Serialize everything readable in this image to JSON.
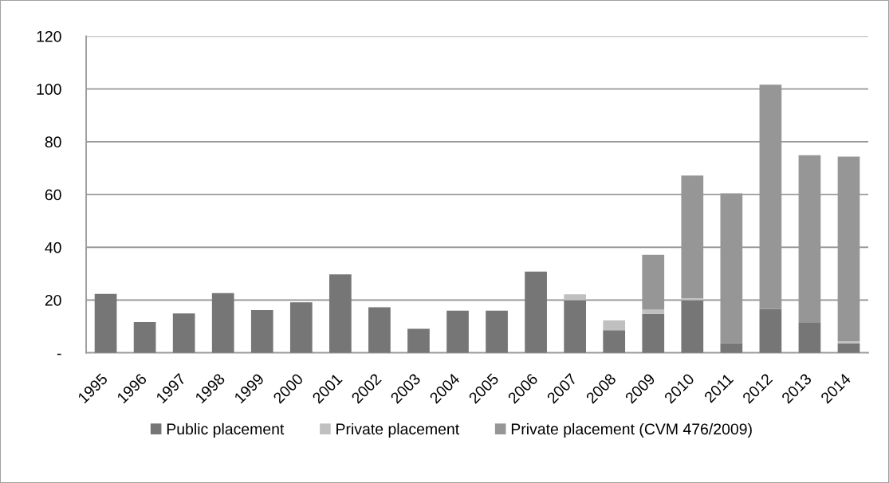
{
  "chart_data": {
    "type": "bar",
    "stacked": true,
    "categories": [
      "1995",
      "1996",
      "1997",
      "1998",
      "1999",
      "2000",
      "2001",
      "2002",
      "2003",
      "2004",
      "2005",
      "2006",
      "2007",
      "2008",
      "2009",
      "2010",
      "2011",
      "2012",
      "2013",
      "2014"
    ],
    "series": [
      {
        "name": "Public placement",
        "color": "#767676",
        "values": [
          22.3,
          11.7,
          14.9,
          22.6,
          16.2,
          19.2,
          29.7,
          17.3,
          9.1,
          16.0,
          16.0,
          30.8,
          19.9,
          8.6,
          14.8,
          19.9,
          3.7,
          16.6,
          11.6,
          3.6
        ]
      },
      {
        "name": "Private placement",
        "color": "#c0c0c0",
        "values": [
          null,
          null,
          null,
          null,
          null,
          null,
          null,
          null,
          null,
          null,
          null,
          null,
          2.3,
          3.7,
          1.6,
          0.8,
          null,
          null,
          null,
          0.8
        ]
      },
      {
        "name": "Private placement (CVM 476/2009)",
        "color": "#969696",
        "values": [
          null,
          null,
          null,
          null,
          null,
          null,
          null,
          null,
          null,
          null,
          null,
          null,
          null,
          null,
          20.7,
          46.5,
          56.8,
          85.0,
          63.3,
          70.0
        ]
      }
    ],
    "ylim": [
      0,
      120
    ],
    "yticks": [
      {
        "value": 0,
        "label": "-"
      },
      20,
      40,
      60,
      80,
      100,
      120
    ],
    "grid": "y",
    "legend": "bottom"
  }
}
